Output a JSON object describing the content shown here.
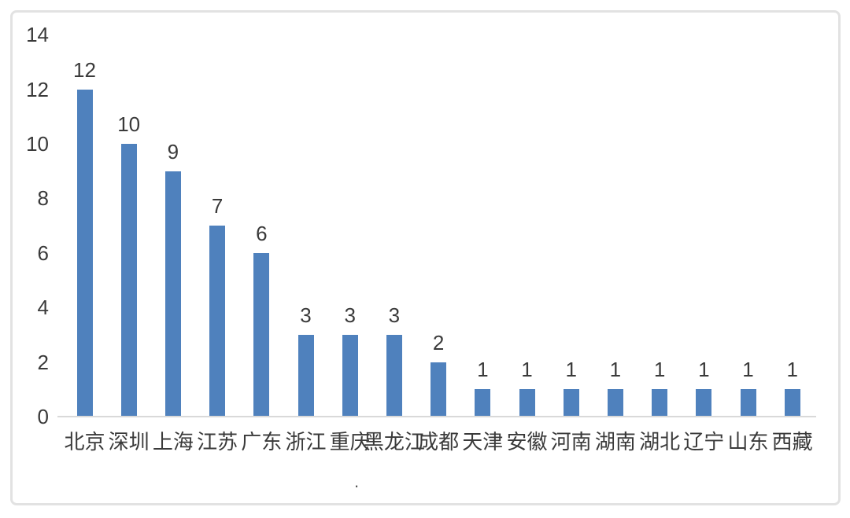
{
  "chart_data": {
    "type": "bar",
    "title": "",
    "xlabel": "",
    "ylabel": "",
    "categories": [
      "北京",
      "深圳",
      "上海",
      "江苏",
      "广东",
      "浙江",
      "重庆",
      "黑龙江",
      "成都",
      "天津",
      "安徽",
      "河南",
      "湖南",
      "湖北",
      "辽宁",
      "山东",
      "西藏"
    ],
    "values": [
      12,
      10,
      9,
      7,
      6,
      3,
      3,
      3,
      2,
      1,
      1,
      1,
      1,
      1,
      1,
      1,
      1
    ],
    "yticks": [
      0,
      2,
      4,
      6,
      8,
      10,
      12,
      14
    ],
    "ylim": [
      0,
      14
    ],
    "grid": false,
    "legend_shown": false,
    "data_labels_shown": true,
    "bar_color": "#4f81bd",
    "axis_line_color": "#d9d9d9",
    "text_color": "#3a3a3a",
    "frame_border_color": "#e2e2e2"
  },
  "footnote": {
    "dot": "."
  }
}
